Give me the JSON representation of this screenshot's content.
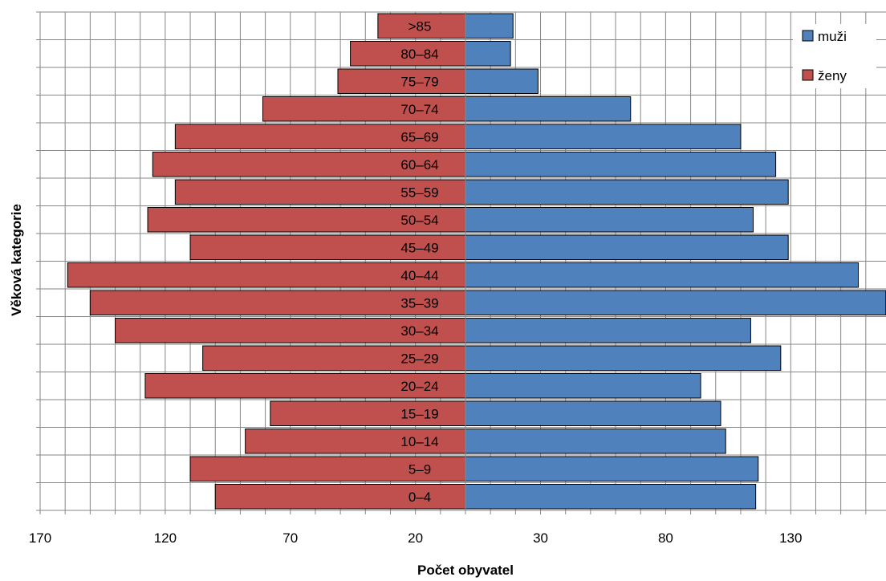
{
  "chart_data": {
    "type": "bar",
    "orientation": "horizontal",
    "subtype": "population-pyramid",
    "xlabel": "Počet obyvatel",
    "ylabel": "Věková kategorie",
    "categories": [
      "0–4",
      "5–9",
      "10–14",
      "15–19",
      "20–24",
      "25–29",
      "30–34",
      "35–39",
      "40–44",
      "45–49",
      "50–54",
      "55–59",
      "60–64",
      "65–69",
      "70–74",
      "75–79",
      "80–84",
      ">85"
    ],
    "series": [
      {
        "name": "muži",
        "side": "right",
        "color": "#4f81bd",
        "values": [
          116,
          117,
          104,
          102,
          94,
          126,
          114,
          168,
          157,
          129,
          115,
          129,
          124,
          110,
          66,
          29,
          18,
          19
        ]
      },
      {
        "name": "ženy",
        "side": "left",
        "color": "#c0504d",
        "values": [
          100,
          110,
          88,
          78,
          128,
          105,
          140,
          150,
          159,
          110,
          127,
          116,
          125,
          116,
          81,
          51,
          46,
          35
        ]
      }
    ],
    "x_tick_labels": [
      "170",
      "120",
      "70",
      "20",
      "30",
      "80",
      "130"
    ],
    "xlim_left": [
      170,
      0
    ],
    "xlim_right": [
      0,
      170
    ],
    "grid": true,
    "legend_position": "top-right",
    "legend": [
      {
        "label": "muži",
        "color": "#4f81bd"
      },
      {
        "label": "ženy",
        "color": "#c0504d"
      }
    ]
  }
}
